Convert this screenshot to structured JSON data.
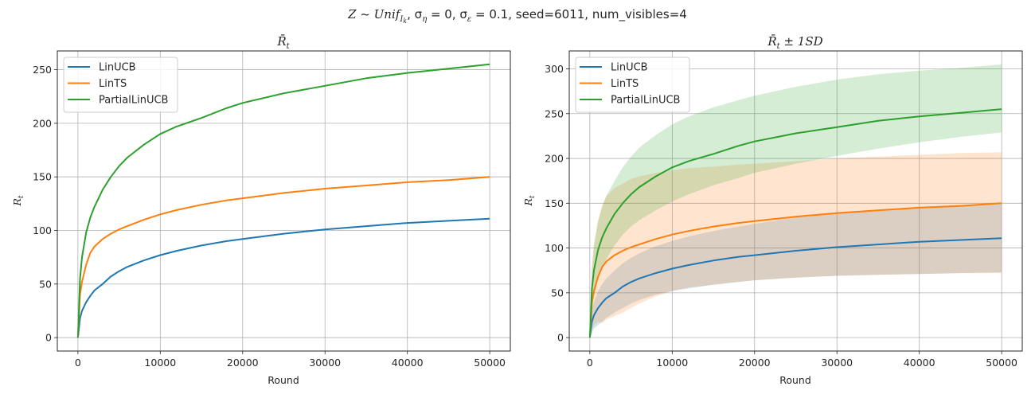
{
  "figure": {
    "suptitle": {
      "prefix": "Z ~ Unif",
      "prefix_sub": "I",
      "prefix_subsub": "k",
      "part2": ", σ",
      "part2_sub": "η",
      "part3": " = 0, σ",
      "part3_sub": "ε",
      "part4": " = 0.1, seed=6011, num_visibles=4"
    }
  },
  "chart_data": [
    {
      "type": "line",
      "title": "R̄",
      "title_sub": "t",
      "xlabel": "Round",
      "ylabel": "R",
      "ylabel_sub": "t",
      "xlim": [
        -2500,
        52500
      ],
      "ylim": [
        -12.5,
        267.5
      ],
      "xticks": [
        0,
        10000,
        20000,
        30000,
        40000,
        50000
      ],
      "yticks": [
        0,
        50,
        100,
        150,
        200,
        250
      ],
      "grid": true,
      "legend": "top-left",
      "x": [
        0,
        250,
        500,
        1000,
        1500,
        2000,
        3000,
        4000,
        5000,
        6000,
        8000,
        10000,
        12000,
        15000,
        18000,
        20000,
        25000,
        30000,
        35000,
        40000,
        45000,
        50000
      ],
      "series": [
        {
          "name": "LinUCB",
          "color": "#1f77b4",
          "values": [
            0,
            18,
            25,
            33,
            39,
            44,
            50,
            57,
            62,
            66,
            72,
            77,
            81,
            86,
            90,
            92,
            97,
            101,
            104,
            107,
            109,
            111
          ]
        },
        {
          "name": "LinTS",
          "color": "#ff7f0e",
          "values": [
            0,
            40,
            52,
            68,
            79,
            85,
            92,
            97,
            101,
            104,
            110,
            115,
            119,
            124,
            128,
            130,
            135,
            139,
            142,
            145,
            147,
            150
          ]
        },
        {
          "name": "PartialLinUCB",
          "color": "#2ca02c",
          "values": [
            0,
            55,
            75,
            98,
            112,
            122,
            138,
            150,
            160,
            168,
            180,
            190,
            197,
            205,
            214,
            219,
            228,
            235,
            242,
            247,
            251,
            255
          ]
        }
      ]
    },
    {
      "type": "area",
      "title": "R̄",
      "title_sub": "t",
      "title_suffix": " ± 1SD",
      "xlabel": "Round",
      "ylabel": "R",
      "ylabel_sub": "t",
      "xlim": [
        -2500,
        52500
      ],
      "ylim": [
        -15,
        320
      ],
      "xticks": [
        0,
        10000,
        20000,
        30000,
        40000,
        50000
      ],
      "yticks": [
        0,
        50,
        100,
        150,
        200,
        250,
        300
      ],
      "grid": true,
      "legend": "top-left",
      "x": [
        0,
        250,
        500,
        1000,
        1500,
        2000,
        3000,
        4000,
        5000,
        6000,
        8000,
        10000,
        12000,
        15000,
        18000,
        20000,
        25000,
        30000,
        35000,
        40000,
        45000,
        50000
      ],
      "series": [
        {
          "name": "LinUCB",
          "color": "#1f77b4",
          "values": [
            0,
            18,
            25,
            33,
            39,
            44,
            50,
            57,
            62,
            66,
            72,
            77,
            81,
            86,
            90,
            92,
            97,
            101,
            104,
            107,
            109,
            111
          ],
          "lower": [
            0,
            5,
            10,
            14,
            18,
            22,
            28,
            33,
            38,
            42,
            48,
            52,
            55,
            59,
            62,
            64,
            67,
            69,
            70,
            71,
            72,
            73
          ],
          "upper": [
            0,
            32,
            40,
            52,
            60,
            66,
            75,
            83,
            89,
            94,
            102,
            108,
            113,
            119,
            124,
            127,
            134,
            140,
            143,
            146,
            148,
            150
          ]
        },
        {
          "name": "LinTS",
          "color": "#ff7f0e",
          "values": [
            0,
            40,
            52,
            68,
            79,
            85,
            92,
            97,
            101,
            104,
            110,
            115,
            119,
            124,
            128,
            130,
            135,
            139,
            142,
            145,
            147,
            150
          ],
          "lower": [
            0,
            10,
            14,
            18,
            16,
            20,
            24,
            28,
            33,
            38,
            46,
            52,
            56,
            59,
            62,
            64,
            67,
            69,
            70,
            71,
            72,
            72
          ],
          "upper": [
            0,
            75,
            100,
            130,
            148,
            158,
            167,
            172,
            177,
            180,
            184,
            187,
            189,
            191,
            193,
            194,
            197,
            200,
            202,
            204,
            206,
            207
          ]
        },
        {
          "name": "PartialLinUCB",
          "color": "#2ca02c",
          "values": [
            0,
            55,
            75,
            98,
            112,
            122,
            138,
            150,
            160,
            168,
            180,
            190,
            197,
            205,
            214,
            219,
            228,
            235,
            242,
            247,
            251,
            255
          ],
          "lower": [
            0,
            30,
            45,
            65,
            78,
            88,
            103,
            115,
            124,
            131,
            142,
            152,
            160,
            170,
            178,
            184,
            194,
            203,
            211,
            218,
            224,
            229
          ],
          "upper": [
            0,
            80,
            105,
            130,
            146,
            158,
            175,
            190,
            202,
            212,
            226,
            238,
            247,
            257,
            265,
            270,
            280,
            288,
            294,
            298,
            301,
            305
          ]
        }
      ]
    }
  ]
}
